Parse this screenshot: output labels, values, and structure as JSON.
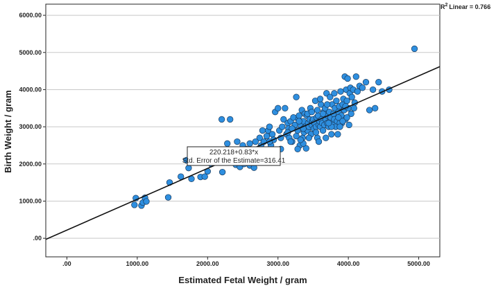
{
  "chart_data": {
    "type": "scatter",
    "xlabel": "Estimated Fetal Weight / gram",
    "ylabel": "Birth Weight / gram",
    "xlim": [
      -300,
      5300
    ],
    "ylim": [
      -500,
      6300
    ],
    "x_ticks": [
      0,
      1000,
      2000,
      3000,
      4000,
      5000
    ],
    "x_tick_labels": [
      ".00",
      "1000.00",
      "2000.00",
      "3000.00",
      "4000.00",
      "5000.00"
    ],
    "y_ticks": [
      0,
      1000,
      2000,
      3000,
      4000,
      5000,
      6000
    ],
    "y_tick_labels": [
      ".00",
      "1000.00",
      "2000.00",
      "3000.00",
      "4000.00",
      "5000.00",
      "6000.00"
    ],
    "gridlines": "horizontal",
    "fit": {
      "type": "linear",
      "intercept": 220.218,
      "slope": 0.83,
      "r2_label": "Linear = 0.766",
      "equation": "220.218+0.83*x",
      "std_error": "Std. Error of the Estimate=316.41"
    },
    "marker_color": "#2E8FE0",
    "marker_edge": "#1a3a5c",
    "points": [
      [
        960,
        900
      ],
      [
        980,
        1080
      ],
      [
        1060,
        880
      ],
      [
        1080,
        960
      ],
      [
        1110,
        1090
      ],
      [
        1130,
        990
      ],
      [
        1440,
        1100
      ],
      [
        1460,
        1500
      ],
      [
        1620,
        1660
      ],
      [
        1700,
        2100
      ],
      [
        1730,
        1890
      ],
      [
        1770,
        1600
      ],
      [
        1900,
        1650
      ],
      [
        1960,
        1660
      ],
      [
        2000,
        1800
      ],
      [
        1990,
        2100
      ],
      [
        2050,
        2000
      ],
      [
        2150,
        2100
      ],
      [
        2200,
        3200
      ],
      [
        2210,
        1780
      ],
      [
        2280,
        2550
      ],
      [
        2320,
        3200
      ],
      [
        2360,
        2050
      ],
      [
        2400,
        1980
      ],
      [
        2420,
        2600
      ],
      [
        2460,
        1920
      ],
      [
        2500,
        2500
      ],
      [
        2520,
        2000
      ],
      [
        2550,
        2400
      ],
      [
        2600,
        2550
      ],
      [
        2600,
        1960
      ],
      [
        2640,
        2200
      ],
      [
        2660,
        1900
      ],
      [
        2700,
        2050
      ],
      [
        2720,
        2400
      ],
      [
        2740,
        2700
      ],
      [
        2760,
        2500
      ],
      [
        2780,
        2900
      ],
      [
        2800,
        2600
      ],
      [
        2820,
        2300
      ],
      [
        2840,
        2750
      ],
      [
        2860,
        2900
      ],
      [
        2880,
        3000
      ],
      [
        2900,
        2500
      ],
      [
        2920,
        2800
      ],
      [
        2940,
        2650
      ],
      [
        2960,
        3400
      ],
      [
        3000,
        3500
      ],
      [
        3020,
        2900
      ],
      [
        3040,
        2700
      ],
      [
        3060,
        3000
      ],
      [
        3080,
        3200
      ],
      [
        3100,
        3500
      ],
      [
        3120,
        2800
      ],
      [
        3140,
        3100
      ],
      [
        3150,
        2950
      ],
      [
        3180,
        3150
      ],
      [
        3200,
        2600
      ],
      [
        3220,
        3250
      ],
      [
        3240,
        3050
      ],
      [
        3260,
        3800
      ],
      [
        3280,
        2900
      ],
      [
        3290,
        3200
      ],
      [
        3300,
        3300
      ],
      [
        3310,
        2500
      ],
      [
        3320,
        3050
      ],
      [
        3340,
        3450
      ],
      [
        3350,
        2700
      ],
      [
        3360,
        3150
      ],
      [
        3370,
        2850
      ],
      [
        3380,
        3350
      ],
      [
        3390,
        3000
      ],
      [
        3400,
        2420
      ],
      [
        3410,
        3300
      ],
      [
        3420,
        2900
      ],
      [
        3430,
        3100
      ],
      [
        3440,
        3000
      ],
      [
        3450,
        3200
      ],
      [
        3460,
        3500
      ],
      [
        3470,
        2800
      ],
      [
        3480,
        3050
      ],
      [
        3490,
        3150
      ],
      [
        3500,
        3200
      ],
      [
        3510,
        2950
      ],
      [
        3520,
        3100
      ],
      [
        3530,
        3700
      ],
      [
        3540,
        3000
      ],
      [
        3550,
        3250
      ],
      [
        3560,
        2700
      ],
      [
        3570,
        3300
      ],
      [
        3580,
        3050
      ],
      [
        3590,
        3150
      ],
      [
        3600,
        3000
      ],
      [
        3610,
        3600
      ],
      [
        3620,
        3200
      ],
      [
        3630,
        3100
      ],
      [
        3640,
        2900
      ],
      [
        3650,
        3400
      ],
      [
        3660,
        3050
      ],
      [
        3670,
        3500
      ],
      [
        3680,
        3200
      ],
      [
        3690,
        3900
      ],
      [
        3700,
        3100
      ],
      [
        3710,
        3300
      ],
      [
        3720,
        3000
      ],
      [
        3730,
        3400
      ],
      [
        3740,
        3150
      ],
      [
        3750,
        3250
      ],
      [
        3760,
        2800
      ],
      [
        3770,
        3600
      ],
      [
        3780,
        3050
      ],
      [
        3790,
        3350
      ],
      [
        3800,
        3200
      ],
      [
        3810,
        3500
      ],
      [
        3820,
        3000
      ],
      [
        3830,
        3700
      ],
      [
        3840,
        3150
      ],
      [
        3850,
        2800
      ],
      [
        3860,
        3400
      ],
      [
        3870,
        3550
      ],
      [
        3880,
        3250
      ],
      [
        3890,
        3950
      ],
      [
        3900,
        3300
      ],
      [
        3910,
        3100
      ],
      [
        3920,
        3600
      ],
      [
        3930,
        3750
      ],
      [
        3940,
        3450
      ],
      [
        3950,
        4350
      ],
      [
        3960,
        3200
      ],
      [
        3970,
        4000
      ],
      [
        3980,
        3700
      ],
      [
        3990,
        4300
      ],
      [
        4000,
        3500
      ],
      [
        4010,
        3050
      ],
      [
        4020,
        3900
      ],
      [
        4030,
        4050
      ],
      [
        4050,
        3800
      ],
      [
        4070,
        4000
      ],
      [
        4090,
        3650
      ],
      [
        4110,
        4350
      ],
      [
        4130,
        3950
      ],
      [
        4160,
        4100
      ],
      [
        4200,
        4050
      ],
      [
        4250,
        4200
      ],
      [
        4300,
        3450
      ],
      [
        4350,
        4000
      ],
      [
        4380,
        3500
      ],
      [
        4430,
        4200
      ],
      [
        4480,
        3950
      ],
      [
        4580,
        4000
      ],
      [
        4940,
        5100
      ],
      [
        2480,
        2200
      ],
      [
        2560,
        2300
      ],
      [
        2680,
        2600
      ],
      [
        2760,
        2200
      ],
      [
        2880,
        2600
      ],
      [
        3040,
        2400
      ],
      [
        3160,
        2700
      ],
      [
        3180,
        2600
      ],
      [
        3280,
        2400
      ],
      [
        3360,
        2550
      ],
      [
        3440,
        2700
      ],
      [
        3540,
        2850
      ],
      [
        3580,
        2600
      ],
      [
        3680,
        2700
      ],
      [
        3760,
        3000
      ],
      [
        3880,
        3100
      ],
      [
        3320,
        2650
      ],
      [
        3260,
        2750
      ],
      [
        3140,
        2850
      ],
      [
        3200,
        2950
      ],
      [
        3360,
        2950
      ],
      [
        3420,
        3350
      ],
      [
        3480,
        3400
      ],
      [
        3300,
        3150
      ],
      [
        3640,
        3350
      ],
      [
        3700,
        3600
      ],
      [
        3860,
        3250
      ],
      [
        3920,
        3150
      ],
      [
        3960,
        3550
      ],
      [
        4040,
        3350
      ],
      [
        4080,
        3500
      ],
      [
        3560,
        3450
      ],
      [
        3600,
        3750
      ],
      [
        3740,
        3800
      ],
      [
        3800,
        3900
      ],
      [
        3720,
        3100
      ],
      [
        3880,
        3000
      ],
      [
        3980,
        3250
      ]
    ]
  }
}
